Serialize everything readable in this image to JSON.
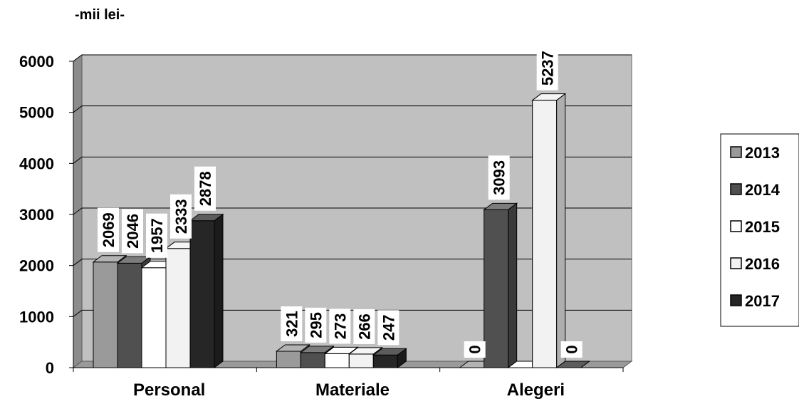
{
  "unit_label": "-mii lei-",
  "chart_data": {
    "type": "bar",
    "subtitle": "-mii lei-",
    "categories": [
      "Personal",
      "Materiale",
      "Alegeri"
    ],
    "series": [
      {
        "name": "2013",
        "values": [
          2069,
          321,
          0
        ],
        "labels": [
          "2069",
          "321",
          "0"
        ],
        "color": "#9a9a9a"
      },
      {
        "name": "2014",
        "values": [
          2046,
          295,
          3093
        ],
        "labels": [
          "2046",
          "295",
          "3093"
        ],
        "color": "#505050"
      },
      {
        "name": "2015",
        "values": [
          1957,
          273,
          0
        ],
        "labels": [
          "1957",
          "273",
          ""
        ],
        "color": "#ffffff"
      },
      {
        "name": "2016",
        "values": [
          2333,
          266,
          5237
        ],
        "labels": [
          "2333",
          "266",
          "5237"
        ],
        "color": "#f2f2f2"
      },
      {
        "name": "2017",
        "values": [
          2878,
          247,
          0
        ],
        "labels": [
          "2878",
          "247",
          "0"
        ],
        "color": "#262626"
      }
    ],
    "ylim": [
      0,
      6000
    ],
    "yticks": [
      "0",
      "1000",
      "2000",
      "3000",
      "4000",
      "5000",
      "6000"
    ],
    "grid": true,
    "legend_position": "right",
    "plot_background": "#c0c0c0",
    "three_d": true
  }
}
